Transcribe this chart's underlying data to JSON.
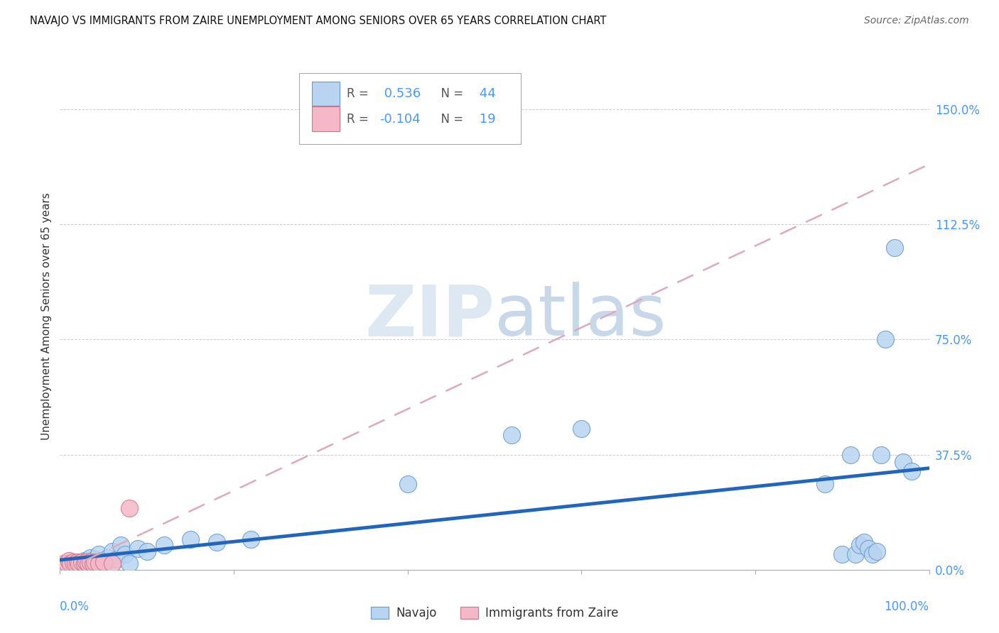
{
  "title": "NAVAJO VS IMMIGRANTS FROM ZAIRE UNEMPLOYMENT AMONG SENIORS OVER 65 YEARS CORRELATION CHART",
  "source": "Source: ZipAtlas.com",
  "ylabel": "Unemployment Among Seniors over 65 years",
  "ytick_labels": [
    "0.0%",
    "37.5%",
    "75.0%",
    "112.5%",
    "150.0%"
  ],
  "ytick_values": [
    0.0,
    0.375,
    0.75,
    1.125,
    1.5
  ],
  "xlim": [
    0.0,
    1.0
  ],
  "ylim": [
    0.0,
    1.65
  ],
  "navajo_R": 0.536,
  "navajo_N": 44,
  "zaire_R": -0.104,
  "zaire_N": 19,
  "color_navajo_fill": "#b8d4f0",
  "color_navajo_edge": "#6699cc",
  "color_zaire_fill": "#f5b8c8",
  "color_zaire_edge": "#cc7788",
  "line_color_navajo": "#2266bb",
  "line_color_zaire": "#ddaabb",
  "bg_color": "#ffffff",
  "watermark_color": "#dde8f2",
  "axis_label_color": "#4499ff",
  "text_color": "#333333",
  "title_fontsize": 10.5,
  "navajo_x": [
    0.01,
    0.015,
    0.02,
    0.022,
    0.025,
    0.028,
    0.03,
    0.032,
    0.035,
    0.038,
    0.04,
    0.042,
    0.045,
    0.048,
    0.05,
    0.055,
    0.06,
    0.065,
    0.07,
    0.075,
    0.08,
    0.09,
    0.1,
    0.12,
    0.15,
    0.18,
    0.22,
    0.4,
    0.52,
    0.6,
    0.88,
    0.9,
    0.91,
    0.915,
    0.92,
    0.925,
    0.93,
    0.935,
    0.94,
    0.945,
    0.95,
    0.96,
    0.97,
    0.98
  ],
  "navajo_y": [
    0.01,
    0.02,
    0.015,
    0.025,
    0.01,
    0.03,
    0.02,
    0.015,
    0.04,
    0.025,
    0.035,
    0.02,
    0.05,
    0.03,
    0.015,
    0.04,
    0.06,
    0.035,
    0.08,
    0.05,
    0.02,
    0.07,
    0.06,
    0.08,
    0.1,
    0.09,
    0.1,
    0.28,
    0.44,
    0.46,
    0.28,
    0.05,
    0.375,
    0.05,
    0.08,
    0.09,
    0.07,
    0.05,
    0.06,
    0.375,
    0.75,
    1.05,
    0.35,
    0.32
  ],
  "zaire_x": [
    0.005,
    0.008,
    0.01,
    0.012,
    0.015,
    0.018,
    0.02,
    0.022,
    0.025,
    0.028,
    0.03,
    0.032,
    0.035,
    0.038,
    0.04,
    0.045,
    0.05,
    0.06,
    0.08
  ],
  "zaire_y": [
    0.02,
    0.02,
    0.03,
    0.02,
    0.025,
    0.02,
    0.025,
    0.02,
    0.025,
    0.02,
    0.025,
    0.02,
    0.025,
    0.02,
    0.025,
    0.02,
    0.025,
    0.02,
    0.2
  ]
}
